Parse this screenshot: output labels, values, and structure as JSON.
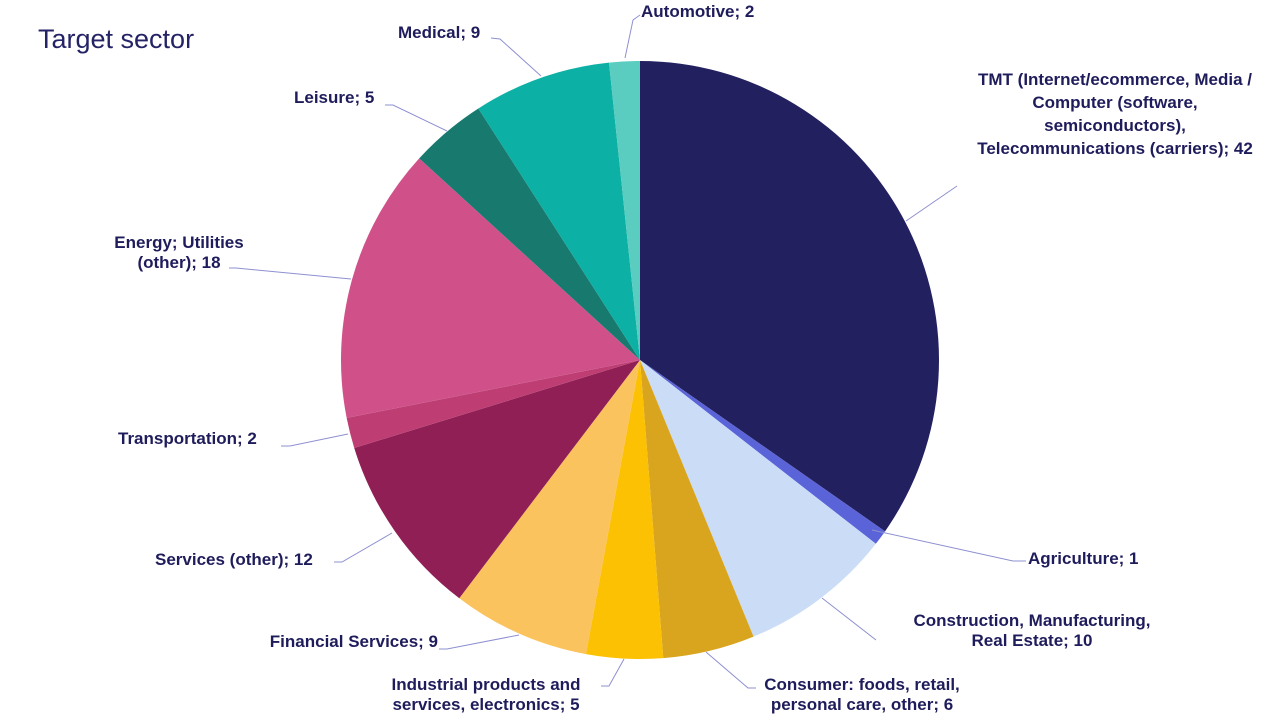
{
  "chart_data": {
    "type": "pie",
    "title": "Target sector",
    "values_total": 121,
    "start_angle_deg": 0,
    "direction": "clockwise",
    "legend_position": "none",
    "background": "#FFFFFF",
    "text_color": "#1F1C5B",
    "leader_line_color": "#8E90D0",
    "slices": [
      {
        "key": "tmt",
        "category": "TMT (Internet/ecommerce, Media / Computer (software, semiconductors), Telecommunications (carriers)",
        "value": 42,
        "color": "#232060",
        "label_lines": [
          "TMT (Internet/ecommerce, Media /",
          "Computer (software,",
          "semiconductors),",
          "Telecommunications (carriers); 42"
        ]
      },
      {
        "key": "agriculture",
        "category": "Agriculture",
        "value": 1,
        "color": "#5A64D8",
        "label_lines": [
          "Agriculture; 1"
        ]
      },
      {
        "key": "construction",
        "category": "Construction, Manufacturing, Real Estate",
        "value": 10,
        "color": "#CBDDF6",
        "label_lines": [
          "Construction, Manufacturing,",
          "Real Estate; 10"
        ]
      },
      {
        "key": "consumer",
        "category": "Consumer: foods, retail, personal care, other",
        "value": 6,
        "color": "#D9A51F",
        "label_lines": [
          "Consumer: foods, retail,",
          "personal care, other; 6"
        ]
      },
      {
        "key": "industrial",
        "category": "Industrial products and services, electronics",
        "value": 5,
        "color": "#FBC102",
        "label_lines": [
          "Industrial products and",
          "services, electronics; 5"
        ]
      },
      {
        "key": "financial",
        "category": "Financial Services",
        "value": 9,
        "color": "#FBC35D",
        "label_lines": [
          "Financial Services; 9"
        ]
      },
      {
        "key": "services",
        "category": "Services (other)",
        "value": 12,
        "color": "#901F55",
        "label_lines": [
          "Services (other); 12"
        ]
      },
      {
        "key": "transportation",
        "category": "Transportation",
        "value": 2,
        "color": "#BE3E74",
        "label_lines": [
          "Transportation; 2"
        ]
      },
      {
        "key": "energy",
        "category": "Energy; Utilities (other)",
        "value": 18,
        "color": "#D05089",
        "label_lines": [
          "Energy; Utilities",
          "(other); 18"
        ]
      },
      {
        "key": "leisure",
        "category": "Leisure",
        "value": 5,
        "color": "#187A6F",
        "label_lines": [
          "Leisure; 5"
        ]
      },
      {
        "key": "medical",
        "category": "Medical",
        "value": 9,
        "color": "#0CB0A5",
        "label_lines": [
          "Medical; 9"
        ]
      },
      {
        "key": "automotive",
        "category": "Automotive",
        "value": 2,
        "color": "#5BCDC0",
        "label_lines": [
          "Automotive; 2"
        ]
      }
    ]
  }
}
